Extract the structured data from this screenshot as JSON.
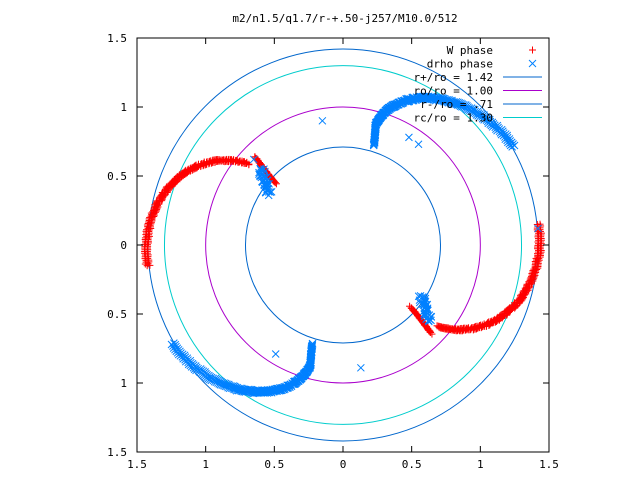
{
  "chart_data": {
    "type": "scatter",
    "title": "m2/n1.5/q1.7/r-+.50-j257/M10.0/512",
    "xlim": [
      -1.5,
      1.5
    ],
    "ylim": [
      -1.5,
      1.5
    ],
    "x_ticks": [
      -1.5,
      -1,
      -0.5,
      0,
      0.5,
      1,
      1.5
    ],
    "x_tick_labels": [
      "1.5",
      "1",
      "0.5",
      "0",
      "0.5",
      "1",
      "1.5"
    ],
    "y_ticks": [
      1.5,
      1,
      0.5,
      0,
      -0.5,
      -1,
      -1.5
    ],
    "y_tick_labels": [
      "1.5",
      "1",
      "0.5",
      "0",
      "0.5",
      "1",
      "1.5"
    ],
    "legend_position": "top-right",
    "grid": false,
    "series": [
      {
        "name": "W phase",
        "kind": "points",
        "marker": "plus",
        "color": "#ff0000",
        "arms": [
          {
            "r_start": 1.42,
            "th_start_deg": 186,
            "r_end": 0.66,
            "th_end_deg": 135,
            "r_peak": 1.2,
            "bulge_deg": 4
          },
          {
            "r_start": 1.42,
            "th_start_deg": 6,
            "r_end": 0.66,
            "th_end_deg": -45,
            "r_peak": 1.2,
            "bulge_deg": 4
          }
        ]
      },
      {
        "name": "drho phase",
        "kind": "points",
        "marker": "cross",
        "color": "#0080ff",
        "arms": [
          {
            "r_start": 1.42,
            "th_start_deg": 30,
            "r_end": 0.75,
            "th_end_deg": 75,
            "r_peak": 0.95,
            "bulge_deg": 3
          },
          {
            "r_start": 1.42,
            "th_start_deg": 210,
            "r_end": 0.75,
            "th_end_deg": 255,
            "r_peak": 0.95,
            "bulge_deg": 3
          }
        ],
        "blobs": [
          {
            "x": -0.6,
            "y": 0.55
          },
          {
            "x": 0.63,
            "y": -0.55
          }
        ],
        "isolated": [
          {
            "x": -0.15,
            "y": 0.9
          },
          {
            "x": 0.48,
            "y": 0.78
          },
          {
            "x": 0.55,
            "y": 0.73
          },
          {
            "x": -0.65,
            "y": 0.62
          },
          {
            "x": -0.49,
            "y": -0.79
          },
          {
            "x": 0.13,
            "y": -0.89
          },
          {
            "x": 1.42,
            "y": 0.12
          }
        ]
      },
      {
        "name": "r+/ro = 1.42",
        "kind": "circle",
        "radius": 1.42,
        "color": "#0066cc"
      },
      {
        "name": "ro/ro = 1.00",
        "kind": "circle",
        "radius": 1.0,
        "color": "#aa00cc"
      },
      {
        "name": "r-/ro = .71",
        "kind": "circle",
        "radius": 0.71,
        "color": "#0066cc"
      },
      {
        "name": "rc/ro = 1.30",
        "kind": "circle",
        "radius": 1.3,
        "color": "#00cccc"
      }
    ]
  }
}
